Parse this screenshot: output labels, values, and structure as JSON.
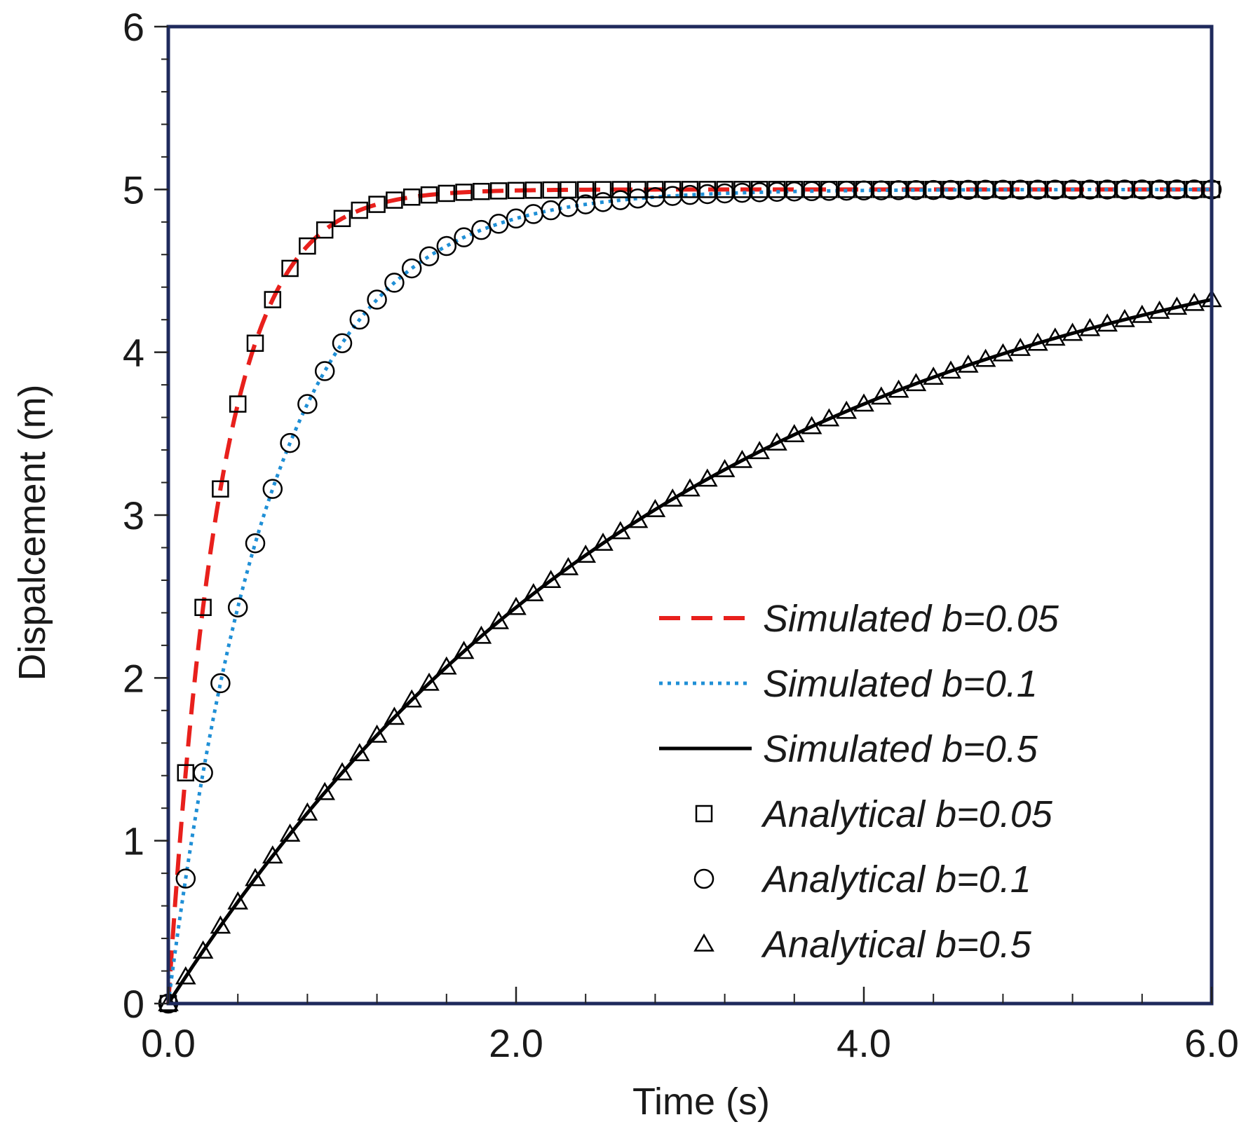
{
  "chart_data": {
    "type": "line",
    "title": "",
    "xlabel": "Time (s)",
    "ylabel": "Dispalcement (m)",
    "xlim": [
      0,
      6
    ],
    "ylim": [
      0,
      6
    ],
    "x_ticks": [
      0,
      2,
      4,
      6
    ],
    "x_tick_labels": [
      "0.0",
      "2.0",
      "4.0",
      "6.0"
    ],
    "y_ticks": [
      0,
      1,
      2,
      3,
      4,
      5,
      6
    ],
    "y_tick_labels": [
      "0",
      "1",
      "2",
      "3",
      "4",
      "5",
      "6"
    ],
    "x_minor_step": 0.4,
    "y_minor_step": 0.2,
    "legend_position": "bottom-right",
    "plateau": 5,
    "series": [
      {
        "name": "Simulated b=0.05",
        "kind": "line",
        "style": "dashed",
        "color": "#e8201c",
        "b": 0.05,
        "x_step": 0.02
      },
      {
        "name": "Simulated b=0.1",
        "kind": "line",
        "style": "dotted",
        "color": "#1f8fd6",
        "b": 0.1,
        "x_step": 0.02
      },
      {
        "name": "Simulated b=0.5",
        "kind": "line",
        "style": "solid",
        "color": "#000000",
        "b": 0.5,
        "x_step": 0.02
      },
      {
        "name": "Analytical b=0.05",
        "kind": "marker",
        "marker": "square",
        "b": 0.05,
        "x_step": 0.1
      },
      {
        "name": "Analytical b=0.1",
        "kind": "marker",
        "marker": "circle",
        "b": 0.1,
        "x_step": 0.1
      },
      {
        "name": "Analytical b=0.5",
        "kind": "marker",
        "marker": "triangle",
        "b": 0.5,
        "x_step": 0.1
      }
    ]
  }
}
